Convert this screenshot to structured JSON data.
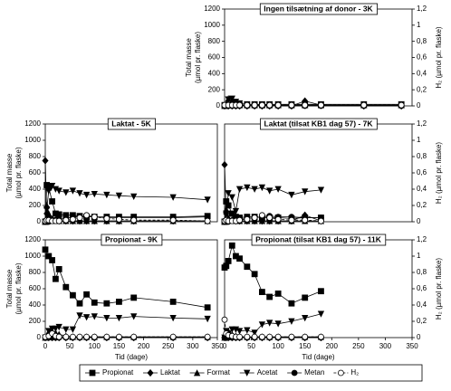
{
  "chart_data": [
    {
      "type": "line",
      "title": "Ingen tilsætning af donor - 3K",
      "ylabel": [
        "Total masse",
        "(µmol pr. flaske)"
      ],
      "y2label": "H₂ (µmol pr. flaske)",
      "xlim": [
        0,
        350
      ],
      "ylim": [
        0,
        1200
      ],
      "y2lim": [
        0,
        1.2
      ],
      "yticks": [
        0,
        200,
        400,
        600,
        800,
        1000,
        1200
      ],
      "y2ticks": [
        0,
        {
          "value": 0.2,
          "label": "0,2"
        },
        {
          "value": 0.4,
          "label": "0,4"
        },
        {
          "value": 0.6,
          "label": "0,6"
        },
        {
          "value": 0.8,
          "label": "0,8"
        },
        1,
        {
          "value": 1.2,
          "label": "1,2"
        }
      ],
      "x": [
        0,
        7,
        14,
        21,
        28,
        42,
        56,
        70,
        84,
        100,
        125,
        150,
        180,
        260,
        330
      ],
      "series": [
        {
          "name": "Propionat",
          "marker": "square",
          "color": "#000",
          "values": [
            10,
            10,
            10,
            10,
            10,
            10,
            10,
            10,
            10,
            10,
            10,
            10,
            10,
            10,
            10
          ]
        },
        {
          "name": "Laktat",
          "marker": "diamond",
          "color": "#000",
          "values": [
            0,
            0,
            0,
            0,
            0,
            0,
            0,
            0,
            0,
            0,
            0,
            60,
            10,
            0,
            0
          ]
        },
        {
          "name": "Format",
          "marker": "tri-up",
          "color": "#000",
          "values": [
            0,
            90,
            60,
            20,
            10,
            10,
            10,
            10,
            10,
            10,
            10,
            10,
            10,
            10,
            10
          ]
        },
        {
          "name": "Acetat",
          "marker": "tri-down",
          "color": "#000",
          "values": [
            0,
            80,
            90,
            50,
            30,
            20,
            20,
            20,
            20,
            20,
            20,
            20,
            20,
            20,
            20
          ]
        },
        {
          "name": "Metan",
          "marker": "dot",
          "color": "#000",
          "values": [
            0,
            0,
            0,
            0,
            0,
            0,
            0,
            0,
            0,
            0,
            0,
            0,
            0,
            0,
            0
          ]
        },
        {
          "name": "H₂",
          "marker": "circle",
          "dash": true,
          "axis": "y2",
          "color": "#000",
          "values": [
            0.01,
            0.01,
            0.01,
            0.01,
            0.01,
            0.01,
            0.01,
            0.01,
            0.01,
            0.01,
            0.01,
            0.01,
            0.01,
            0.01,
            0.01
          ]
        }
      ]
    },
    {
      "type": "line",
      "title": "Laktat - 5K",
      "ylabel": [
        "Total masse",
        "(µmol pr. flaske)"
      ],
      "xlim": [
        0,
        350
      ],
      "ylim": [
        0,
        1200
      ],
      "y2lim": [
        0,
        1.2
      ],
      "yticks": [
        0,
        200,
        400,
        600,
        800,
        1000,
        1200
      ],
      "x": [
        0,
        3,
        7,
        14,
        21,
        28,
        42,
        56,
        70,
        84,
        100,
        125,
        150,
        180,
        260,
        330
      ],
      "series": [
        {
          "name": "Propionat",
          "marker": "square",
          "color": "#000",
          "values": [
            0,
            450,
            420,
            250,
            100,
            90,
            80,
            80,
            70,
            60,
            60,
            60,
            60,
            60,
            60,
            70
          ]
        },
        {
          "name": "Laktat",
          "marker": "diamond",
          "color": "#000",
          "values": [
            750,
            100,
            50,
            30,
            20,
            10,
            10,
            10,
            10,
            10,
            10,
            10,
            10,
            10,
            10,
            10
          ]
        },
        {
          "name": "Format",
          "marker": "tri-up",
          "color": "#000",
          "values": [
            0,
            200,
            100,
            30,
            10,
            10,
            10,
            10,
            10,
            10,
            10,
            10,
            10,
            10,
            10,
            10
          ]
        },
        {
          "name": "Acetat",
          "marker": "tri-down",
          "color": "#000",
          "values": [
            0,
            150,
            380,
            440,
            400,
            380,
            360,
            380,
            350,
            330,
            340,
            330,
            320,
            310,
            300,
            270
          ]
        },
        {
          "name": "Metan",
          "marker": "dot",
          "color": "#000",
          "values": [
            0,
            0,
            0,
            10,
            20,
            30,
            40,
            60,
            60,
            60,
            60,
            50,
            50,
            50,
            50,
            60
          ]
        },
        {
          "name": "H₂",
          "marker": "circle",
          "dash": true,
          "axis": "y2",
          "color": "#000",
          "values": [
            0.01,
            0.02,
            0.02,
            0.01,
            0.01,
            0.01,
            0.02,
            0.03,
            0.05,
            0.08,
            0.06,
            0.04,
            0.03,
            0.02,
            0.02,
            0.01
          ]
        }
      ]
    },
    {
      "type": "line",
      "title": "Laktat (tilsat KB1 dag 57) - 7K",
      "y2label": "H₂ (µmol pr. flaske)",
      "xlim": [
        0,
        350
      ],
      "ylim": [
        0,
        1200
      ],
      "y2lim": [
        0,
        1.2
      ],
      "y2ticks": [
        0,
        {
          "value": 0.2,
          "label": "0,2"
        },
        {
          "value": 0.4,
          "label": "0,4"
        },
        {
          "value": 0.6,
          "label": "0,6"
        },
        {
          "value": 0.8,
          "label": "0,8"
        },
        1,
        {
          "value": 1.2,
          "label": "1,2"
        }
      ],
      "x": [
        0,
        3,
        7,
        14,
        21,
        28,
        42,
        56,
        70,
        84,
        100,
        125,
        150,
        180
      ],
      "series": [
        {
          "name": "Propionat",
          "marker": "square",
          "color": "#000",
          "values": [
            0,
            250,
            200,
            100,
            60,
            50,
            60,
            60,
            50,
            50,
            50,
            40,
            50,
            50
          ]
        },
        {
          "name": "Laktat",
          "marker": "diamond",
          "color": "#000",
          "values": [
            700,
            100,
            30,
            20,
            10,
            10,
            10,
            10,
            10,
            10,
            10,
            10,
            80,
            10
          ]
        },
        {
          "name": "Format",
          "marker": "tri-up",
          "color": "#000",
          "values": [
            0,
            150,
            50,
            20,
            10,
            10,
            10,
            10,
            10,
            10,
            10,
            10,
            10,
            10
          ]
        },
        {
          "name": "Acetat",
          "marker": "tri-down",
          "color": "#000",
          "values": [
            0,
            100,
            350,
            300,
            130,
            400,
            420,
            400,
            420,
            380,
            400,
            330,
            370,
            390
          ]
        },
        {
          "name": "Metan",
          "marker": "dot",
          "color": "#000",
          "values": [
            0,
            0,
            0,
            10,
            20,
            30,
            40,
            50,
            60,
            70,
            60,
            60,
            50,
            50
          ]
        },
        {
          "name": "H₂",
          "marker": "circle",
          "dash": true,
          "axis": "y2",
          "color": "#000",
          "values": [
            0.01,
            0.02,
            0.01,
            0.01,
            0.01,
            0.02,
            0.03,
            0.05,
            0.08,
            0.05,
            0.03,
            0.02,
            0.02,
            0.01
          ]
        }
      ]
    },
    {
      "type": "line",
      "title": "Propionat - 9K",
      "ylabel": [
        "Total masse",
        "(µmol pr. flaske)"
      ],
      "xlabel": "Tid (dage)",
      "xlim": [
        0,
        350
      ],
      "ylim": [
        0,
        1200
      ],
      "y2lim": [
        0,
        1.2
      ],
      "yticks": [
        0,
        200,
        400,
        600,
        800,
        1000,
        1200
      ],
      "xticks": [
        0,
        50,
        100,
        150,
        200,
        250,
        300,
        350
      ],
      "x": [
        0,
        7,
        14,
        21,
        28,
        42,
        56,
        70,
        84,
        100,
        125,
        150,
        180,
        260,
        330
      ],
      "series": [
        {
          "name": "Propionat",
          "marker": "square",
          "color": "#000",
          "values": [
            1080,
            1000,
            950,
            720,
            840,
            620,
            520,
            420,
            530,
            430,
            420,
            440,
            490,
            440,
            370
          ]
        },
        {
          "name": "Laktat",
          "marker": "diamond",
          "color": "#000",
          "values": [
            0,
            0,
            0,
            0,
            0,
            0,
            0,
            0,
            0,
            0,
            0,
            0,
            0,
            0,
            0
          ]
        },
        {
          "name": "Format",
          "marker": "tri-up",
          "color": "#000",
          "values": [
            0,
            70,
            80,
            60,
            40,
            20,
            10,
            10,
            10,
            10,
            10,
            10,
            10,
            10,
            10
          ]
        },
        {
          "name": "Acetat",
          "marker": "tri-down",
          "color": "#000",
          "values": [
            0,
            80,
            110,
            110,
            130,
            100,
            100,
            270,
            250,
            260,
            240,
            240,
            260,
            240,
            230
          ]
        },
        {
          "name": "Metan",
          "marker": "dot",
          "color": "#000",
          "values": [
            0,
            0,
            0,
            0,
            0,
            0,
            0,
            0,
            0,
            0,
            0,
            0,
            0,
            0,
            0
          ]
        },
        {
          "name": "H₂",
          "marker": "circle",
          "dash": true,
          "axis": "y2",
          "color": "#000",
          "values": [
            0.01,
            0.02,
            0.05,
            0.02,
            0.01,
            0.01,
            0.01,
            0.01,
            0.01,
            0.01,
            0.01,
            0.01,
            0.01,
            0.01,
            0.01
          ]
        }
      ]
    },
    {
      "type": "line",
      "title": "Propionat (tilsat KB1 dag 57) - 11K",
      "y2label": "H₂ (µmol pr. flaske)",
      "xlabel": "Tid (dage)",
      "xlim": [
        0,
        350
      ],
      "ylim": [
        0,
        1200
      ],
      "y2lim": [
        0,
        1.2
      ],
      "y2ticks": [
        0,
        {
          "value": 0.2,
          "label": "0,2"
        },
        {
          "value": 0.4,
          "label": "0,4"
        },
        {
          "value": 0.6,
          "label": "0,6"
        },
        {
          "value": 0.8,
          "label": "0,8"
        },
        1,
        {
          "value": 1.2,
          "label": "1,2"
        }
      ],
      "xticks": [
        0,
        50,
        100,
        150,
        200,
        250,
        300,
        350
      ],
      "x": [
        0,
        3,
        7,
        14,
        21,
        28,
        42,
        56,
        70,
        84,
        100,
        125,
        150,
        180
      ],
      "series": [
        {
          "name": "Propionat",
          "marker": "square",
          "color": "#000",
          "values": [
            860,
            880,
            940,
            1130,
            1000,
            970,
            870,
            780,
            560,
            500,
            540,
            420,
            490,
            570
          ]
        },
        {
          "name": "Laktat",
          "marker": "diamond",
          "color": "#000",
          "values": [
            0,
            0,
            0,
            0,
            0,
            0,
            0,
            0,
            0,
            0,
            0,
            0,
            0,
            0
          ]
        },
        {
          "name": "Format",
          "marker": "tri-up",
          "color": "#000",
          "values": [
            0,
            60,
            80,
            40,
            20,
            10,
            10,
            10,
            10,
            10,
            10,
            10,
            10,
            10
          ]
        },
        {
          "name": "Acetat",
          "marker": "tri-down",
          "color": "#000",
          "values": [
            0,
            80,
            50,
            100,
            100,
            80,
            90,
            60,
            160,
            180,
            170,
            200,
            240,
            290
          ]
        },
        {
          "name": "Metan",
          "marker": "dot",
          "color": "#000",
          "values": [
            0,
            0,
            0,
            0,
            0,
            0,
            0,
            0,
            0,
            0,
            0,
            0,
            0,
            0
          ]
        },
        {
          "name": "H₂",
          "marker": "circle",
          "dash": true,
          "axis": "y2",
          "color": "#000",
          "values": [
            0.22,
            0.05,
            0.03,
            0.02,
            0.01,
            0.01,
            0.01,
            0.01,
            0.01,
            0.01,
            0.01,
            0.01,
            0.01,
            0.01
          ]
        }
      ]
    }
  ]
}
